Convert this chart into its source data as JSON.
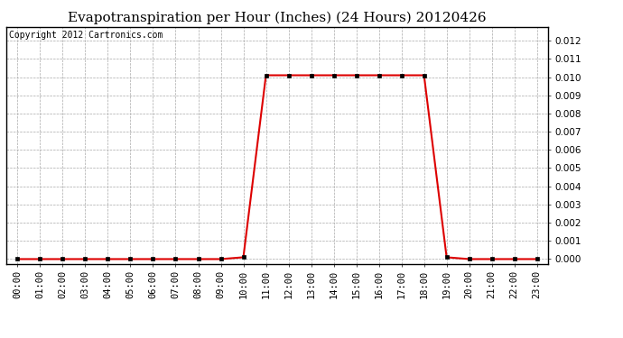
{
  "title": "Evapotranspiration per Hour (Inches) (24 Hours) 20120426",
  "copyright_text": "Copyright 2012 Cartronics.com",
  "x_labels": [
    "00:00",
    "01:00",
    "02:00",
    "03:00",
    "04:00",
    "05:00",
    "06:00",
    "07:00",
    "08:00",
    "09:00",
    "10:00",
    "11:00",
    "12:00",
    "13:00",
    "14:00",
    "15:00",
    "16:00",
    "17:00",
    "18:00",
    "19:00",
    "20:00",
    "21:00",
    "22:00",
    "23:00"
  ],
  "y_values": [
    0.0,
    0.0,
    0.0,
    0.0,
    0.0,
    0.0,
    0.0,
    0.0,
    0.0,
    0.0,
    0.0001,
    0.0101,
    0.0101,
    0.0101,
    0.0101,
    0.0101,
    0.0101,
    0.0101,
    0.0101,
    0.0001,
    0.0,
    0.0,
    0.0,
    0.0
  ],
  "line_color": "#dd0000",
  "marker": "s",
  "marker_size": 3,
  "marker_color": "#000000",
  "bg_color": "#ffffff",
  "grid_color": "#aaaaaa",
  "ylim": [
    -0.00025,
    0.01275
  ],
  "yticks": [
    0.0,
    0.001,
    0.002,
    0.003,
    0.004,
    0.005,
    0.006,
    0.007,
    0.008,
    0.009,
    0.01,
    0.011,
    0.012
  ],
  "title_fontsize": 11,
  "tick_fontsize": 7.5,
  "copyright_fontsize": 7
}
